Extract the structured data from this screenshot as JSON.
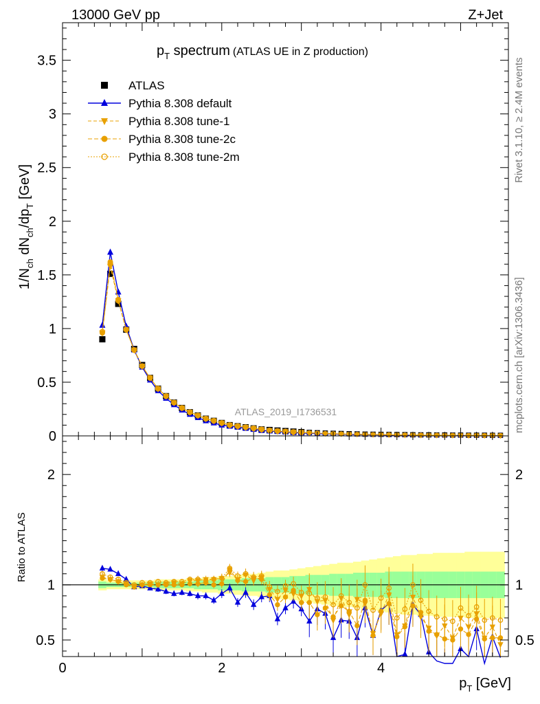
{
  "header": {
    "energy": "13000 GeV pp",
    "process": "Z+Jet"
  },
  "side": {
    "rivet": "Rivet 3.1.10, ≥ 2.4M events",
    "mcplots": "mcplots.cern.ch [arXiv:1306.3436]"
  },
  "analysis_id": "ATLAS_2019_I1736531",
  "colors": {
    "atlas": "#000000",
    "default": "#0000dd",
    "tunes": "#e8a000",
    "band_inner": "#99ff99",
    "band_outer": "#ffff99"
  },
  "chart_data": [
    {
      "type": "scatter",
      "panel": "main",
      "title_main": "p",
      "title_sub": "T",
      "title_rest": " spectrum",
      "title_note": "(ATLAS UE in Z production)",
      "ylabel": "1/N_ch dN_ch/dp_T [GeV]",
      "xlim": [
        0,
        5.6
      ],
      "ylim": [
        0,
        3.85
      ],
      "yticks": [
        "0",
        "0.5",
        "1",
        "1.5",
        "2",
        "2.5",
        "3",
        "3.5"
      ],
      "x": [
        0.5,
        0.6,
        0.7,
        0.8,
        0.9,
        1.0,
        1.1,
        1.2,
        1.3,
        1.4,
        1.5,
        1.6,
        1.7,
        1.8,
        1.9,
        2.0,
        2.1,
        2.2,
        2.3,
        2.4,
        2.5,
        2.6,
        2.7,
        2.8,
        2.9,
        3.0,
        3.1,
        3.2,
        3.3,
        3.4,
        3.5,
        3.6,
        3.7,
        3.8,
        3.9,
        4.0,
        4.1,
        4.2,
        4.3,
        4.4,
        4.5,
        4.6,
        4.7,
        4.8,
        4.9,
        5.0,
        5.1,
        5.2,
        5.3,
        5.4,
        5.5
      ],
      "series": [
        {
          "name": "ATLAS",
          "marker": "square",
          "values": [
            0.9,
            1.51,
            1.23,
            0.99,
            0.81,
            0.66,
            0.54,
            0.44,
            0.37,
            0.31,
            0.26,
            0.22,
            0.19,
            0.16,
            0.14,
            0.12,
            0.1,
            0.09,
            0.08,
            0.07,
            0.06,
            0.055,
            0.05,
            0.045,
            0.04,
            0.035,
            0.032,
            0.029,
            0.026,
            0.024,
            0.022,
            0.02,
            0.018,
            0.016,
            0.015,
            0.014,
            0.013,
            0.012,
            0.011,
            0.01,
            0.009,
            0.009,
            0.008,
            0.008,
            0.007,
            0.007,
            0.006,
            0.006,
            0.006,
            0.005,
            0.005
          ]
        },
        {
          "name": "Pythia 8.308 default",
          "marker": "triangle",
          "values": [
            1.03,
            1.71,
            1.34,
            1.02,
            0.8,
            0.64,
            0.52,
            0.42,
            0.35,
            0.29,
            0.24,
            0.2,
            0.17,
            0.14,
            0.12,
            0.1,
            0.09,
            0.08,
            0.07,
            0.06,
            0.05,
            0.045,
            0.04,
            0.035,
            0.03,
            0.027,
            0.024,
            0.021,
            0.019,
            0.017,
            0.015,
            0.014,
            0.012,
            0.011,
            0.01,
            0.009,
            0.008,
            0.007,
            0.006,
            0.006,
            0.005,
            0.005,
            0.004,
            0.004,
            0.004,
            0.003,
            0.003,
            0.003,
            0.003,
            0.003,
            0.002
          ]
        },
        {
          "name": "Pythia 8.308 tune-1",
          "marker": "triangle-down",
          "values": [
            0.96,
            1.58,
            1.26,
            0.99,
            0.8,
            0.65,
            0.54,
            0.44,
            0.37,
            0.31,
            0.26,
            0.22,
            0.19,
            0.16,
            0.14,
            0.12,
            0.1,
            0.09,
            0.08,
            0.07,
            0.06,
            0.05,
            0.045,
            0.04,
            0.035,
            0.032,
            0.028,
            0.025,
            0.022,
            0.02,
            0.018,
            0.016,
            0.015,
            0.013,
            0.012,
            0.011,
            0.01,
            0.009,
            0.008,
            0.008,
            0.007,
            0.006,
            0.006,
            0.005,
            0.005,
            0.005,
            0.004,
            0.004,
            0.004,
            0.004,
            0.003
          ]
        },
        {
          "name": "Pythia 8.308 tune-2c",
          "marker": "circle",
          "values": [
            0.96,
            1.62,
            1.27,
            0.99,
            0.8,
            0.65,
            0.54,
            0.44,
            0.37,
            0.31,
            0.26,
            0.22,
            0.19,
            0.16,
            0.14,
            0.12,
            0.1,
            0.09,
            0.08,
            0.07,
            0.06,
            0.05,
            0.045,
            0.04,
            0.035,
            0.031,
            0.028,
            0.025,
            0.022,
            0.02,
            0.018,
            0.016,
            0.014,
            0.013,
            0.012,
            0.011,
            0.01,
            0.009,
            0.008,
            0.007,
            0.007,
            0.006,
            0.006,
            0.005,
            0.005,
            0.004,
            0.004,
            0.004,
            0.003,
            0.003,
            0.003
          ]
        },
        {
          "name": "Pythia 8.308 tune-2m",
          "marker": "circle-open",
          "values": [
            0.97,
            1.6,
            1.26,
            0.99,
            0.8,
            0.65,
            0.54,
            0.44,
            0.37,
            0.31,
            0.26,
            0.22,
            0.19,
            0.16,
            0.14,
            0.12,
            0.1,
            0.09,
            0.08,
            0.07,
            0.06,
            0.05,
            0.045,
            0.04,
            0.036,
            0.032,
            0.029,
            0.026,
            0.023,
            0.021,
            0.019,
            0.017,
            0.015,
            0.014,
            0.013,
            0.012,
            0.011,
            0.01,
            0.009,
            0.009,
            0.008,
            0.007,
            0.007,
            0.006,
            0.006,
            0.005,
            0.005,
            0.005,
            0.004,
            0.004,
            0.004
          ]
        }
      ]
    },
    {
      "type": "line",
      "panel": "ratio",
      "ylabel": "Ratio to ATLAS",
      "xlabel_main": "p",
      "xlabel_sub": "T",
      "xlabel_rest": " [GeV]",
      "xlim": [
        0,
        5.6
      ],
      "ylim": [
        0.35,
        2.35
      ],
      "xticks": [
        "0",
        "2",
        "4"
      ],
      "yticks": [
        "0.5",
        "1",
        "2"
      ],
      "yticks_right": [
        "0.5",
        "1",
        "2"
      ],
      "x": [
        0.5,
        0.6,
        0.7,
        0.8,
        0.9,
        1.0,
        1.1,
        1.2,
        1.3,
        1.4,
        1.5,
        1.6,
        1.7,
        1.8,
        1.9,
        2.0,
        2.1,
        2.2,
        2.3,
        2.4,
        2.5,
        2.6,
        2.7,
        2.8,
        2.9,
        3.0,
        3.1,
        3.2,
        3.3,
        3.4,
        3.5,
        3.6,
        3.7,
        3.8,
        3.9,
        4.0,
        4.1,
        4.2,
        4.3,
        4.4,
        4.5,
        4.6,
        4.7,
        4.8,
        4.9,
        5.0,
        5.1,
        5.2,
        5.3,
        5.4,
        5.5
      ],
      "band_inner_half": [
        0.03,
        0.02,
        0.02,
        0.02,
        0.02,
        0.02,
        0.02,
        0.03,
        0.03,
        0.03,
        0.03,
        0.03,
        0.04,
        0.04,
        0.04,
        0.05,
        0.05,
        0.05,
        0.06,
        0.06,
        0.06,
        0.07,
        0.07,
        0.07,
        0.08,
        0.08,
        0.09,
        0.09,
        0.09,
        0.1,
        0.1,
        0.1,
        0.11,
        0.11,
        0.11,
        0.11,
        0.12,
        0.12,
        0.12,
        0.12,
        0.12,
        0.12,
        0.12,
        0.12,
        0.12,
        0.12,
        0.12,
        0.12,
        0.12,
        0.12,
        0.12
      ],
      "band_outer_half": [
        0.05,
        0.04,
        0.04,
        0.04,
        0.04,
        0.04,
        0.04,
        0.05,
        0.05,
        0.05,
        0.05,
        0.06,
        0.06,
        0.07,
        0.07,
        0.08,
        0.08,
        0.09,
        0.1,
        0.1,
        0.11,
        0.12,
        0.13,
        0.13,
        0.14,
        0.15,
        0.16,
        0.17,
        0.18,
        0.19,
        0.2,
        0.2,
        0.21,
        0.22,
        0.23,
        0.24,
        0.25,
        0.26,
        0.27,
        0.27,
        0.28,
        0.28,
        0.29,
        0.29,
        0.29,
        0.29,
        0.3,
        0.3,
        0.3,
        0.3,
        0.3
      ],
      "series": [
        {
          "name": "Pythia 8.308 default",
          "values": [
            1.15,
            1.14,
            1.1,
            1.05,
            0.98,
            0.99,
            0.97,
            0.96,
            0.94,
            0.92,
            0.93,
            0.92,
            0.9,
            0.9,
            0.86,
            0.92,
            0.97,
            0.84,
            0.93,
            0.82,
            0.89,
            0.9,
            0.69,
            0.79,
            0.85,
            0.78,
            0.67,
            0.78,
            0.74,
            0.52,
            0.68,
            0.67,
            0.52,
            0.79,
            0.54,
            0.77,
            0.83,
            0.35,
            0.37,
            0.82,
            0.73,
            0.39,
            0.31,
            0.23,
            0.26,
            0.42,
            0.35,
            0.6,
            0.25,
            0.53,
            0.34
          ]
        },
        {
          "name": "Pythia 8.308 tune-1",
          "values": [
            1.07,
            1.05,
            1.03,
            1.01,
            0.99,
            1.0,
            1.01,
            1.0,
            1.01,
            1.02,
            1.01,
            1.04,
            1.04,
            1.05,
            1.05,
            1.06,
            1.11,
            1.05,
            1.09,
            1.04,
            1.07,
            0.96,
            0.87,
            0.95,
            0.92,
            0.9,
            0.96,
            0.85,
            0.86,
            0.68,
            0.88,
            0.73,
            0.87,
            0.83,
            0.56,
            0.74,
            0.91,
            0.55,
            0.63,
            0.89,
            0.71,
            0.61,
            0.54,
            0.63,
            0.52,
            0.7,
            0.62,
            0.74,
            0.52,
            0.62,
            0.46
          ]
        },
        {
          "name": "Pythia 8.308 tune-2c",
          "values": [
            1.06,
            1.05,
            1.03,
            1.0,
            0.98,
            1.0,
            1.0,
            1.0,
            1.0,
            1.0,
            1.0,
            1.01,
            1.01,
            1.02,
            1.0,
            1.01,
            1.14,
            1.04,
            1.03,
            1.06,
            1.05,
            0.91,
            0.82,
            0.89,
            0.95,
            0.84,
            0.84,
            0.73,
            0.79,
            0.71,
            0.81,
            0.76,
            0.63,
            0.86,
            0.54,
            0.76,
            0.83,
            0.53,
            0.62,
            0.81,
            0.75,
            0.58,
            0.55,
            0.51,
            0.5,
            0.6,
            0.55,
            0.69,
            0.51,
            0.52,
            0.52
          ]
        },
        {
          "name": "Pythia 8.308 tune-2m",
          "values": [
            1.1,
            1.07,
            1.05,
            1.02,
            1.0,
            1.02,
            1.02,
            1.03,
            1.02,
            1.03,
            1.03,
            1.05,
            1.05,
            1.04,
            1.05,
            1.06,
            1.15,
            1.08,
            1.1,
            1.07,
            1.08,
            0.98,
            0.94,
            0.99,
            1.01,
            0.93,
            0.92,
            0.88,
            0.89,
            0.82,
            0.9,
            0.84,
            0.79,
            1.0,
            0.77,
            0.88,
            0.97,
            0.7,
            0.78,
            1.0,
            0.86,
            0.76,
            0.71,
            0.69,
            0.67,
            0.79,
            0.72,
            0.8,
            0.68,
            0.7,
            0.68
          ]
        }
      ]
    }
  ]
}
